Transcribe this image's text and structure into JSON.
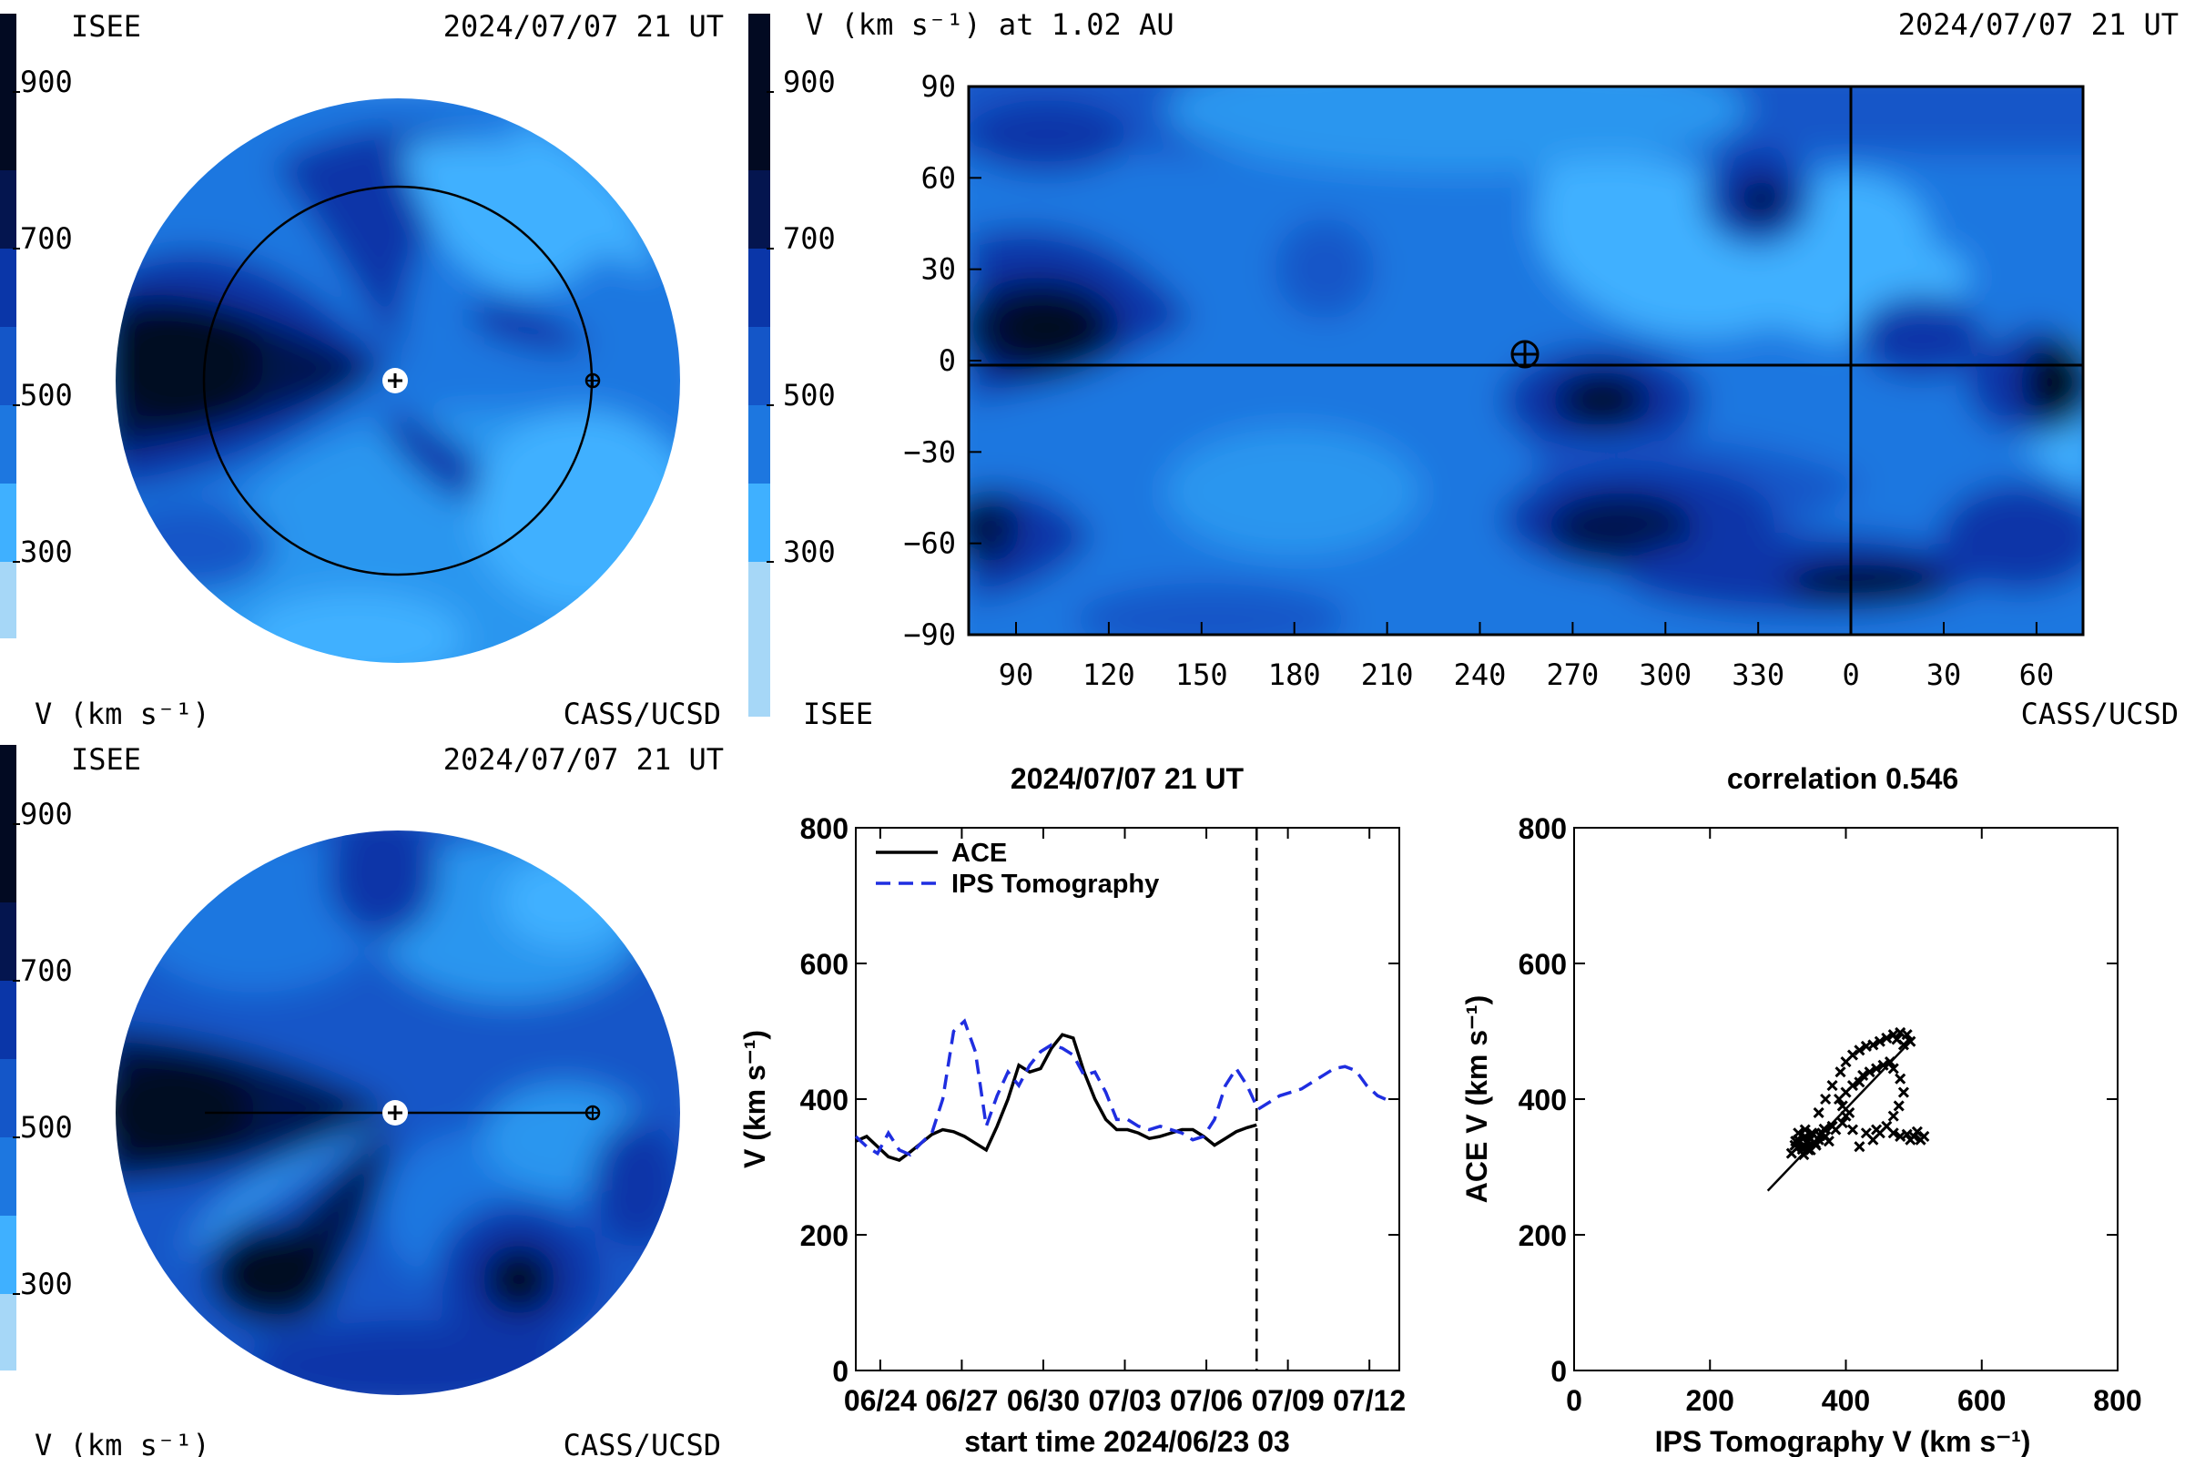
{
  "colors": {
    "levels": [
      "#a6d7f7",
      "#3fb0ff",
      "#2a96ef",
      "#1d77e0",
      "#1456c8",
      "#0a36a8",
      "#062381",
      "#04154f",
      "#020a22"
    ],
    "line": "#000000",
    "ips": "#1f2ee0"
  },
  "panels": {
    "top_left": {
      "label_tl": "ISEE",
      "datetime": "2024/07/07 21 UT",
      "cbar_ticks": [
        "900",
        "700",
        "500",
        "300"
      ],
      "label_bl": "V (km s⁻¹)",
      "label_br": "CASS/UCSD"
    },
    "map": {
      "header": "V (km s⁻¹) at 1.02 AU",
      "datetime": "2024/07/07 21 UT",
      "cbar_ticks": [
        "900",
        "700",
        "500",
        "300"
      ],
      "label_bl": "ISEE",
      "label_br": "CASS/UCSD",
      "y_ticks": [
        "90",
        "60",
        "30",
        "0",
        "−30",
        "−60",
        "−90"
      ],
      "x_ticks": [
        "90",
        "120",
        "150",
        "180",
        "210",
        "240",
        "270",
        "300",
        "330",
        "0",
        "30",
        "60"
      ]
    },
    "bottom_left": {
      "label_tl": "ISEE",
      "datetime": "2024/07/07 21 UT",
      "cbar_ticks": [
        "900",
        "700",
        "500",
        "300"
      ],
      "label_bl": "V (km s⁻¹)",
      "label_br": "CASS/UCSD"
    }
  },
  "chart_data": [
    {
      "type": "line",
      "title": "2024/07/07 21 UT",
      "xlabel": "start time 2024/06/23 03",
      "ylabel": "V (km s⁻¹)",
      "ylim": [
        0,
        800
      ],
      "yticks": [
        0,
        200,
        400,
        600,
        800
      ],
      "xlim": [
        0,
        20
      ],
      "xtick_labels": [
        "06/24",
        "06/27",
        "06/30",
        "07/03",
        "07/06",
        "07/09",
        "07/12"
      ],
      "xtick_positions": [
        0.9,
        3.9,
        6.9,
        9.9,
        12.9,
        15.9,
        18.9
      ],
      "now_marker_x": 14.75,
      "legend": "top-left",
      "series": [
        {
          "name": "ACE",
          "x": [
            0,
            0.4,
            0.8,
            1.2,
            1.6,
            2.0,
            2.4,
            2.8,
            3.2,
            3.6,
            4.0,
            4.4,
            4.8,
            5.2,
            5.6,
            6.0,
            6.4,
            6.8,
            7.2,
            7.6,
            8.0,
            8.4,
            8.8,
            9.2,
            9.6,
            10.0,
            10.4,
            10.8,
            11.2,
            11.6,
            12.0,
            12.4,
            12.8,
            13.2,
            13.6,
            14.0,
            14.4,
            14.75
          ],
          "y": [
            338,
            345,
            330,
            315,
            310,
            322,
            335,
            348,
            355,
            352,
            345,
            335,
            325,
            360,
            400,
            450,
            440,
            445,
            475,
            495,
            490,
            440,
            400,
            370,
            355,
            355,
            350,
            342,
            345,
            350,
            355,
            355,
            345,
            332,
            342,
            352,
            358,
            362
          ]
        },
        {
          "name": "IPS Tomography",
          "x": [
            0,
            0.4,
            0.8,
            1.2,
            1.6,
            2.0,
            2.4,
            2.8,
            3.2,
            3.6,
            4.0,
            4.4,
            4.8,
            5.2,
            5.6,
            6.0,
            6.4,
            6.8,
            7.2,
            7.6,
            8.0,
            8.4,
            8.8,
            9.2,
            9.6,
            10.0,
            10.4,
            10.8,
            11.2,
            11.6,
            12.0,
            12.4,
            12.8,
            13.2,
            13.6,
            14.0,
            14.4,
            14.8,
            15.2,
            15.6,
            16.0,
            16.4,
            16.8,
            17.2,
            17.6,
            18.0,
            18.4,
            18.8,
            19.2,
            19.6
          ],
          "y": [
            345,
            330,
            320,
            350,
            325,
            318,
            335,
            350,
            400,
            500,
            515,
            470,
            360,
            405,
            440,
            420,
            450,
            470,
            480,
            475,
            465,
            435,
            440,
            410,
            370,
            370,
            360,
            355,
            360,
            355,
            350,
            340,
            345,
            370,
            420,
            445,
            420,
            385,
            395,
            405,
            410,
            415,
            425,
            435,
            445,
            448,
            442,
            420,
            405,
            398
          ]
        }
      ]
    },
    {
      "type": "scatter",
      "title": "correlation 0.546",
      "xlabel": "IPS Tomography V (km s⁻¹)",
      "ylabel": "ACE V (km s⁻¹)",
      "xlim": [
        0,
        800
      ],
      "ylim": [
        0,
        800
      ],
      "xticks": [
        0,
        200,
        400,
        600,
        800
      ],
      "yticks": [
        0,
        200,
        400,
        600,
        800
      ],
      "fit_line": [
        [
          285,
          265
        ],
        [
          495,
          485
        ]
      ],
      "points": [
        [
          320,
          320
        ],
        [
          325,
          332
        ],
        [
          330,
          340
        ],
        [
          335,
          330
        ],
        [
          340,
          345
        ],
        [
          338,
          318
        ],
        [
          345,
          338
        ],
        [
          350,
          350
        ],
        [
          348,
          325
        ],
        [
          355,
          335
        ],
        [
          330,
          350
        ],
        [
          340,
          355
        ],
        [
          345,
          325
        ],
        [
          352,
          348
        ],
        [
          360,
          340
        ],
        [
          365,
          350
        ],
        [
          370,
          345
        ],
        [
          380,
          360
        ],
        [
          375,
          338
        ],
        [
          385,
          355
        ],
        [
          395,
          365
        ],
        [
          400,
          375
        ],
        [
          405,
          380
        ],
        [
          395,
          390
        ],
        [
          390,
          400
        ],
        [
          400,
          410
        ],
        [
          410,
          420
        ],
        [
          420,
          425
        ],
        [
          425,
          435
        ],
        [
          435,
          440
        ],
        [
          445,
          445
        ],
        [
          455,
          450
        ],
        [
          465,
          455
        ],
        [
          470,
          445
        ],
        [
          480,
          430
        ],
        [
          485,
          410
        ],
        [
          478,
          390
        ],
        [
          470,
          375
        ],
        [
          460,
          360
        ],
        [
          450,
          350
        ],
        [
          440,
          340
        ],
        [
          420,
          330
        ],
        [
          410,
          355
        ],
        [
          430,
          350
        ],
        [
          445,
          355
        ],
        [
          470,
          350
        ],
        [
          480,
          345
        ],
        [
          490,
          348
        ],
        [
          500,
          345
        ],
        [
          510,
          340
        ],
        [
          515,
          345
        ],
        [
          505,
          352
        ],
        [
          495,
          340
        ],
        [
          360,
          380
        ],
        [
          370,
          400
        ],
        [
          380,
          420
        ],
        [
          392,
          440
        ],
        [
          400,
          455
        ],
        [
          410,
          465
        ],
        [
          420,
          472
        ],
        [
          430,
          478
        ],
        [
          440,
          480
        ],
        [
          450,
          485
        ],
        [
          460,
          490
        ],
        [
          470,
          495
        ],
        [
          480,
          498
        ],
        [
          490,
          495
        ],
        [
          495,
          485
        ],
        [
          485,
          480
        ],
        [
          475,
          488
        ],
        [
          330,
          330
        ],
        [
          336,
          326
        ],
        [
          342,
          336
        ],
        [
          326,
          338
        ],
        [
          348,
          342
        ],
        [
          356,
          332
        ],
        [
          362,
          346
        ],
        [
          368,
          356
        ]
      ]
    }
  ]
}
